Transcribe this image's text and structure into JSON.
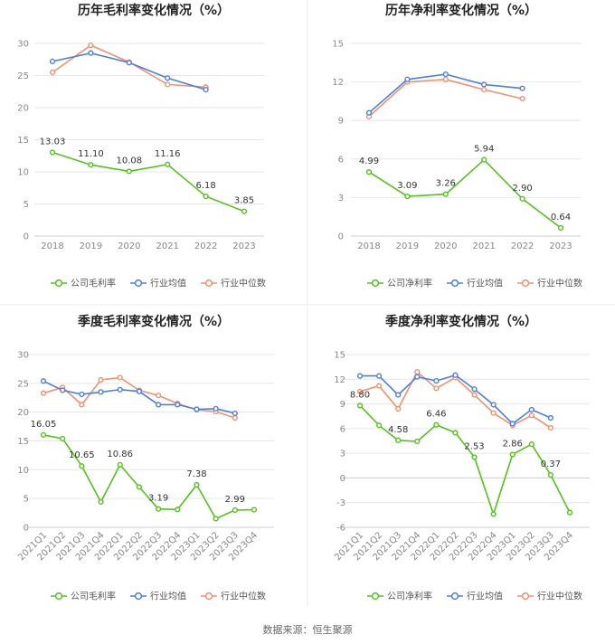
{
  "colors": {
    "company": "#52c41a",
    "avg": "#4a7ee8",
    "median": "#f4906b"
  },
  "footer": "数据来源：恒生聚源",
  "chart_data": [
    {
      "type": "line",
      "title": "历年毛利率变化情况（%）",
      "categories": [
        "2018",
        "2019",
        "2020",
        "2021",
        "2022",
        "2023"
      ],
      "ylim": [
        0,
        30
      ],
      "yticks": [
        0,
        5,
        10,
        15,
        20,
        25,
        30
      ],
      "rotate_x": false,
      "series": [
        {
          "name": "公司毛利率",
          "color_key": "company",
          "values": [
            13.03,
            11.1,
            10.08,
            11.16,
            6.18,
            3.85
          ],
          "labels": [
            "13.03",
            "11.10",
            "10.08",
            "11.16",
            "6.18",
            "3.85"
          ]
        },
        {
          "name": "行业均值",
          "color_key": "avg",
          "values": [
            27.2,
            28.5,
            27.0,
            24.6,
            22.8,
            null
          ]
        },
        {
          "name": "行业中位数",
          "color_key": "median",
          "values": [
            25.5,
            29.7,
            27.1,
            23.6,
            23.2,
            null
          ]
        }
      ]
    },
    {
      "type": "line",
      "title": "历年净利率变化情况（%）",
      "categories": [
        "2018",
        "2019",
        "2020",
        "2021",
        "2022",
        "2023"
      ],
      "ylim": [
        0,
        15
      ],
      "yticks": [
        0,
        3,
        6,
        9,
        12,
        15
      ],
      "rotate_x": false,
      "series": [
        {
          "name": "公司净利率",
          "color_key": "company",
          "values": [
            4.99,
            3.09,
            3.26,
            5.94,
            2.9,
            0.64
          ],
          "labels": [
            "4.99",
            "3.09",
            "3.26",
            "5.94",
            "2.90",
            "0.64"
          ]
        },
        {
          "name": "行业均值",
          "color_key": "avg",
          "values": [
            9.6,
            12.2,
            12.6,
            11.8,
            11.5,
            null
          ]
        },
        {
          "name": "行业中位数",
          "color_key": "median",
          "values": [
            9.3,
            12.0,
            12.2,
            11.4,
            10.7,
            null
          ]
        }
      ]
    },
    {
      "type": "line",
      "title": "季度毛利率变化情况（%）",
      "categories": [
        "2021Q1",
        "2021Q2",
        "2021Q3",
        "2021Q4",
        "2022Q1",
        "2022Q2",
        "2022Q3",
        "2022Q4",
        "2023Q1",
        "2023Q2",
        "2023Q3",
        "2023Q4"
      ],
      "ylim": [
        0,
        30
      ],
      "yticks": [
        0,
        5,
        10,
        15,
        20,
        25,
        30
      ],
      "rotate_x": true,
      "series": [
        {
          "name": "公司毛利率",
          "color_key": "company",
          "values": [
            16.05,
            15.4,
            10.65,
            4.4,
            10.86,
            7.0,
            3.19,
            3.1,
            7.38,
            1.5,
            2.99,
            3.05
          ],
          "labels": [
            "16.05",
            null,
            "10.65",
            null,
            "10.86",
            null,
            "3.19",
            null,
            "7.38",
            null,
            "2.99",
            null
          ]
        },
        {
          "name": "行业均值",
          "color_key": "avg",
          "values": [
            25.4,
            23.8,
            23.1,
            23.5,
            23.9,
            23.6,
            21.3,
            21.3,
            20.5,
            20.6,
            19.8,
            null
          ]
        },
        {
          "name": "行业中位数",
          "color_key": "median",
          "values": [
            23.3,
            24.3,
            21.3,
            25.6,
            26.0,
            23.8,
            22.9,
            21.5,
            20.4,
            20.1,
            19.0,
            null
          ]
        }
      ]
    },
    {
      "type": "line",
      "title": "季度净利率变化情况（%）",
      "categories": [
        "2021Q1",
        "2021Q2",
        "2021Q3",
        "2021Q4",
        "2022Q1",
        "2022Q2",
        "2022Q3",
        "2022Q4",
        "2023Q1",
        "2023Q2",
        "2023Q3",
        "2023Q4"
      ],
      "ylim": [
        -6,
        15
      ],
      "yticks": [
        -6,
        -3,
        0,
        3,
        6,
        9,
        12,
        15
      ],
      "rotate_x": true,
      "series": [
        {
          "name": "公司净利率",
          "color_key": "company",
          "values": [
            8.8,
            6.4,
            4.58,
            4.45,
            6.46,
            5.5,
            2.53,
            -4.4,
            2.86,
            4.1,
            0.37,
            -4.2
          ],
          "labels": [
            "8.80",
            null,
            "4.58",
            null,
            "6.46",
            null,
            "2.53",
            null,
            "2.86",
            null,
            "0.37",
            null
          ]
        },
        {
          "name": "行业均值",
          "color_key": "avg",
          "values": [
            12.4,
            12.4,
            10.1,
            12.3,
            11.8,
            12.5,
            10.8,
            8.9,
            6.6,
            8.3,
            7.3,
            null
          ]
        },
        {
          "name": "行业中位数",
          "color_key": "median",
          "values": [
            10.5,
            11.2,
            8.4,
            12.9,
            10.9,
            12.2,
            10.1,
            7.9,
            6.4,
            7.6,
            6.1,
            null
          ]
        }
      ]
    }
  ]
}
